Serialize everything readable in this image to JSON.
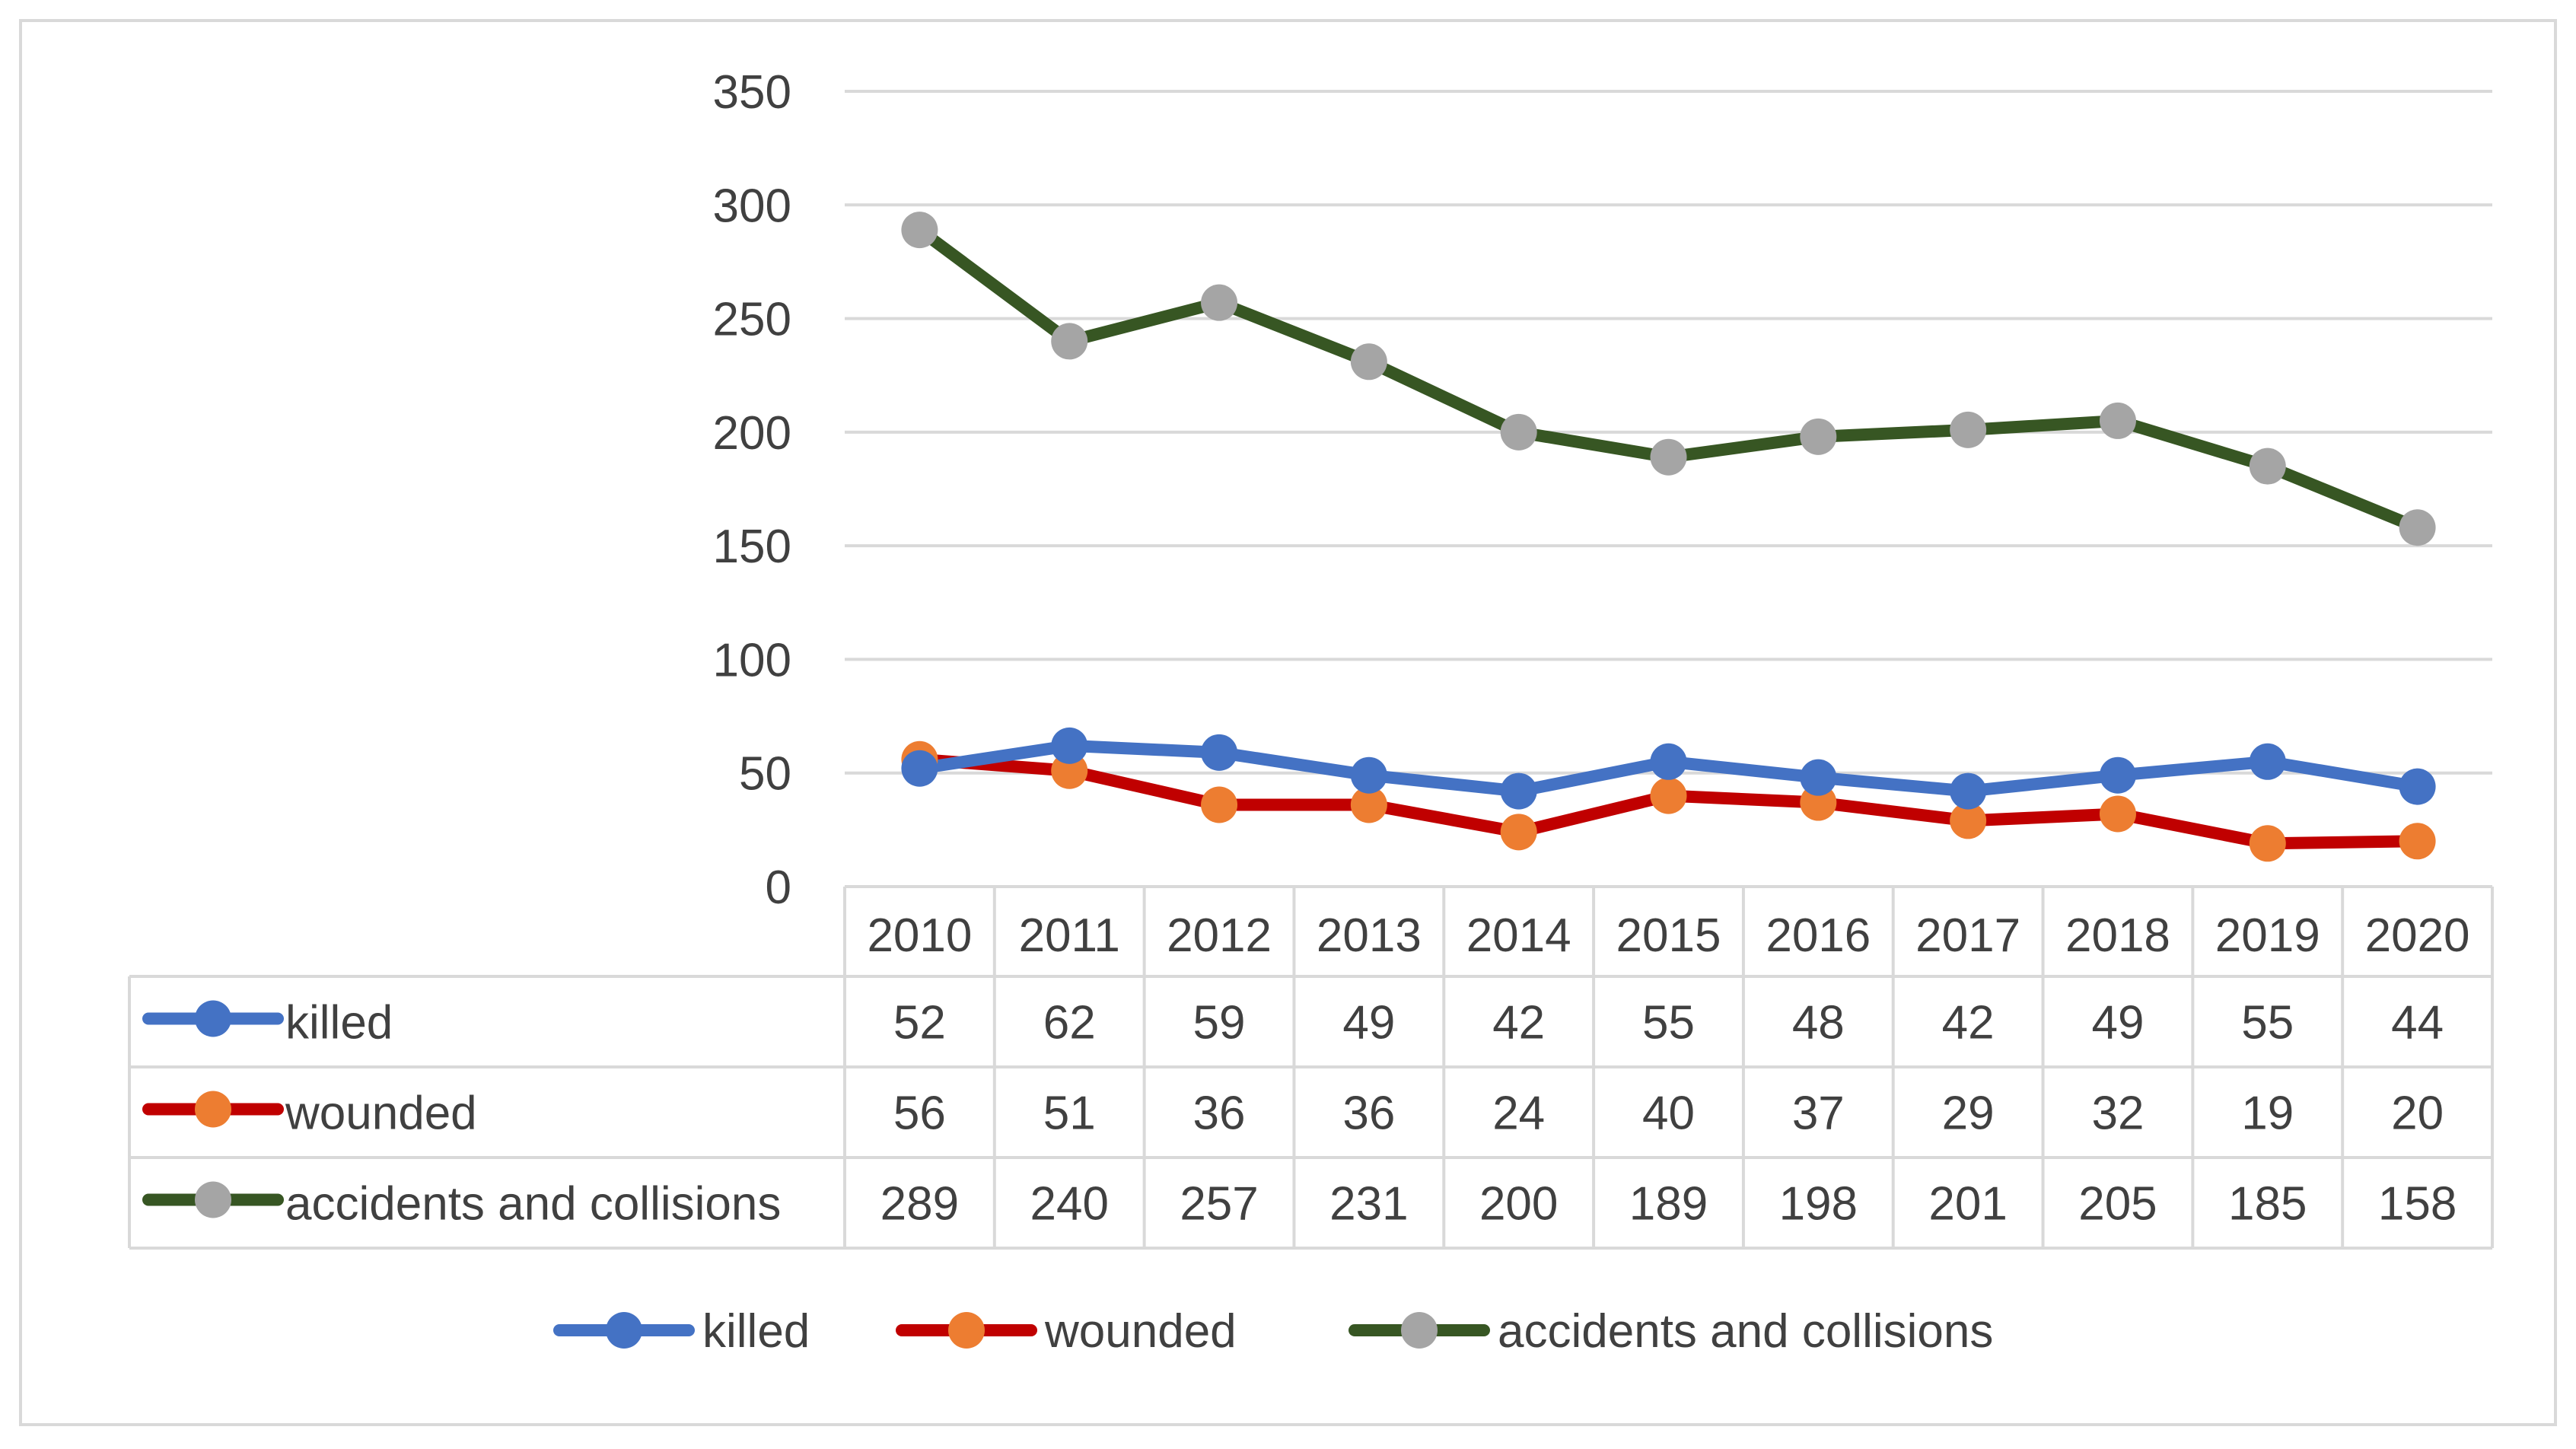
{
  "chart_data": {
    "type": "line",
    "title": "",
    "xlabel": "",
    "ylabel": "",
    "ylim": [
      0,
      350
    ],
    "yticks": [
      "0",
      "50",
      "100",
      "150",
      "200",
      "250",
      "300",
      "350"
    ],
    "categories": [
      "2010",
      "2011",
      "2012",
      "2013",
      "2014",
      "2015",
      "2016",
      "2017",
      "2018",
      "2019",
      "2020"
    ],
    "grid": true,
    "legend_position": "bottom",
    "data_table": true,
    "series": [
      {
        "name": "killed",
        "values": [
          52,
          62,
          59,
          49,
          42,
          55,
          48,
          42,
          49,
          55,
          44
        ],
        "labels": [
          "52",
          "62",
          "59",
          "49",
          "42",
          "55",
          "48",
          "42",
          "49",
          "55",
          "44"
        ],
        "line_color": "#4472C4",
        "marker_color": "#4472C4"
      },
      {
        "name": "wounded",
        "values": [
          56,
          51,
          36,
          36,
          24,
          40,
          37,
          29,
          32,
          19,
          20
        ],
        "labels": [
          "56",
          "51",
          "36",
          "36",
          "24",
          "40",
          "37",
          "29",
          "32",
          "19",
          "20"
        ],
        "line_color": "#C00000",
        "marker_color": "#ED7D31"
      },
      {
        "name": "accidents and collisions",
        "values": [
          289,
          240,
          257,
          231,
          200,
          189,
          198,
          201,
          205,
          185,
          158
        ],
        "labels": [
          "289",
          "240",
          "257",
          "231",
          "200",
          "189",
          "198",
          "201",
          "205",
          "185",
          "158"
        ],
        "line_color": "#375623",
        "marker_color": "#A5A5A5"
      }
    ]
  }
}
